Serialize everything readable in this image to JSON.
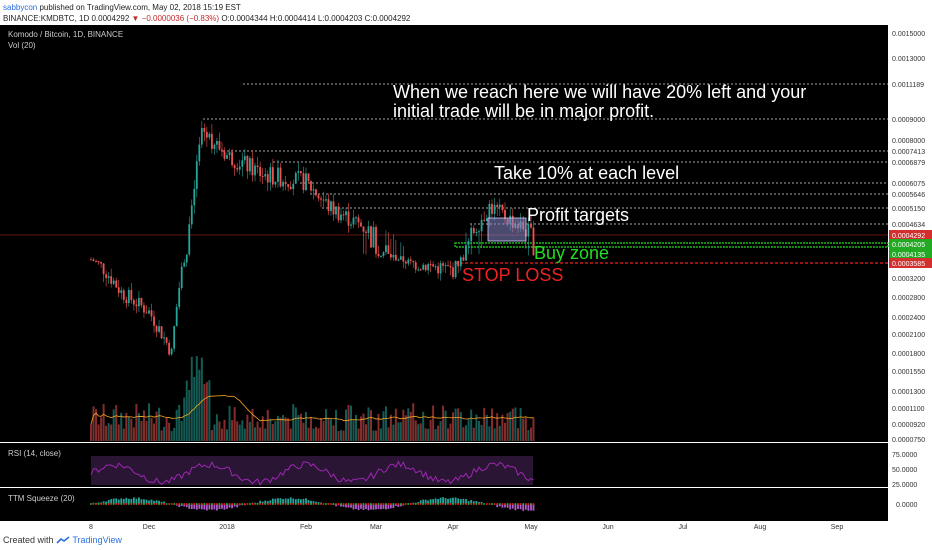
{
  "header": {
    "author": "sabbycon",
    "published_text": "published on TradingView.com, May 02, 2018 15:19 EST",
    "symbol": "BINANCE:KMDBTC, 1D",
    "last_price": "0.0004292",
    "change_arrow": "▼",
    "change": "−0.0000036 (−0.83%)",
    "ohlc": "O:0.0004344 H:0.0004414 L:0.0004203 C:0.0004292"
  },
  "legend": {
    "title": "Komodo / Bitcoin, 1D, BINANCE",
    "volume": "Vol (20)"
  },
  "annotations": {
    "major_profit_line1": "When we reach here we will have 20% left and your",
    "major_profit_line2": "initial trade will be in major profit.",
    "take_profit": "Take 10% at each level",
    "profit_targets": "Profit targets",
    "buy_zone": "Buy zone",
    "stop_loss": "STOP LOSS"
  },
  "price_axis": {
    "labels": [
      "0.0015000",
      "0.0013000",
      "0.0011189",
      "0.0009000",
      "0.0008000",
      "0.0007413",
      "0.0006879",
      "0.0006075",
      "0.0005646",
      "0.0005150",
      "0.0004634",
      "0.0004292",
      "0.0004205",
      "0.0004135",
      "0.0003585",
      "0.0003200",
      "0.0002800",
      "0.0002400",
      "0.0002100",
      "0.0001800",
      "0.0001550",
      "0.0001300",
      "0.0001100",
      "0.0000920",
      "0.0000750"
    ]
  },
  "indicators": {
    "rsi_label": "RSI (14, close)",
    "rsi_ticks": [
      "75.0000",
      "50.0000",
      "25.0000"
    ],
    "squeeze_label": "TTM Squeeze (20)",
    "squeeze_tick": "0.0000"
  },
  "time_axis": {
    "labels": [
      "8",
      "Dec",
      "2018",
      "Feb",
      "Mar",
      "Apr",
      "May",
      "Jun",
      "Jul",
      "Aug",
      "Sep"
    ]
  },
  "footer": {
    "created_with": "Created with",
    "brand": "TradingView"
  },
  "colors": {
    "background": "#000000",
    "up": "#26a69a",
    "down": "#ef5350",
    "green_zone": "#22dd22",
    "stop_loss": "#ee2222",
    "current_price": "#d32f2f",
    "rsi_band": "#2a1535",
    "rsi_line": "#9c27b0"
  },
  "chart_data": {
    "type": "candlestick",
    "title": "Komodo / Bitcoin, 1D, BINANCE",
    "x": [
      "2017-11-08",
      "2017-12-01",
      "2018-01-01",
      "2018-02-01",
      "2018-03-01",
      "2018-04-01",
      "2018-05-01",
      "2018-06-01",
      "2018-07-01",
      "2018-08-01",
      "2018-09-01"
    ],
    "current_price": 0.0004292,
    "profit_target_levels": [
      0.0004634,
      0.000515,
      0.0005646,
      0.0006075,
      0.0006879,
      0.0007413,
      0.0009,
      0.0011189
    ],
    "buy_zone": [
      0.0004135,
      0.0004205
    ],
    "stop_loss": 0.0003585,
    "close_approx": [
      {
        "date": "2017-11-08",
        "close": 0.00038
      },
      {
        "date": "2017-11-20",
        "close": 0.00029
      },
      {
        "date": "2017-12-01",
        "close": 0.00025
      },
      {
        "date": "2017-12-10",
        "close": 0.00018
      },
      {
        "date": "2017-12-18",
        "close": 0.0005
      },
      {
        "date": "2017-12-22",
        "close": 0.00085
      },
      {
        "date": "2018-01-01",
        "close": 0.00072
      },
      {
        "date": "2018-01-15",
        "close": 0.00064
      },
      {
        "date": "2018-02-01",
        "close": 0.00061
      },
      {
        "date": "2018-02-10",
        "close": 0.00052
      },
      {
        "date": "2018-03-01",
        "close": 0.00043
      },
      {
        "date": "2018-03-15",
        "close": 0.00036
      },
      {
        "date": "2018-04-01",
        "close": 0.00034
      },
      {
        "date": "2018-04-15",
        "close": 0.00052
      },
      {
        "date": "2018-05-02",
        "close": 0.0004292
      }
    ]
  }
}
